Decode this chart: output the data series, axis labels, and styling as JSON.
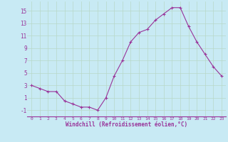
{
  "x": [
    0,
    1,
    2,
    3,
    4,
    5,
    6,
    7,
    8,
    9,
    10,
    11,
    12,
    13,
    14,
    15,
    16,
    17,
    18,
    19,
    20,
    21,
    22,
    23
  ],
  "windchill": [
    3,
    2.5,
    2,
    2,
    0.5,
    0,
    -0.5,
    -0.5,
    -1,
    1,
    4.5,
    7,
    10,
    11.5,
    12,
    13.5,
    14.5,
    15.5,
    15.5,
    12.5,
    10,
    8,
    6,
    4.5
  ],
  "line_color": "#993399",
  "marker_color": "#993399",
  "bg_color": "#c8eaf4",
  "grid_color": "#aaddcc",
  "text_color": "#993399",
  "xlabel": "Windchill (Refroidissement éolien,°C)",
  "ytick_labels": [
    "-1",
    "1",
    "3",
    "5",
    "7",
    "9",
    "11",
    "13",
    "15"
  ],
  "ytick_values": [
    -1,
    1,
    3,
    5,
    7,
    9,
    11,
    13,
    15
  ],
  "xlim": [
    -0.5,
    23.5
  ],
  "ylim": [
    -2.0,
    16.5
  ]
}
